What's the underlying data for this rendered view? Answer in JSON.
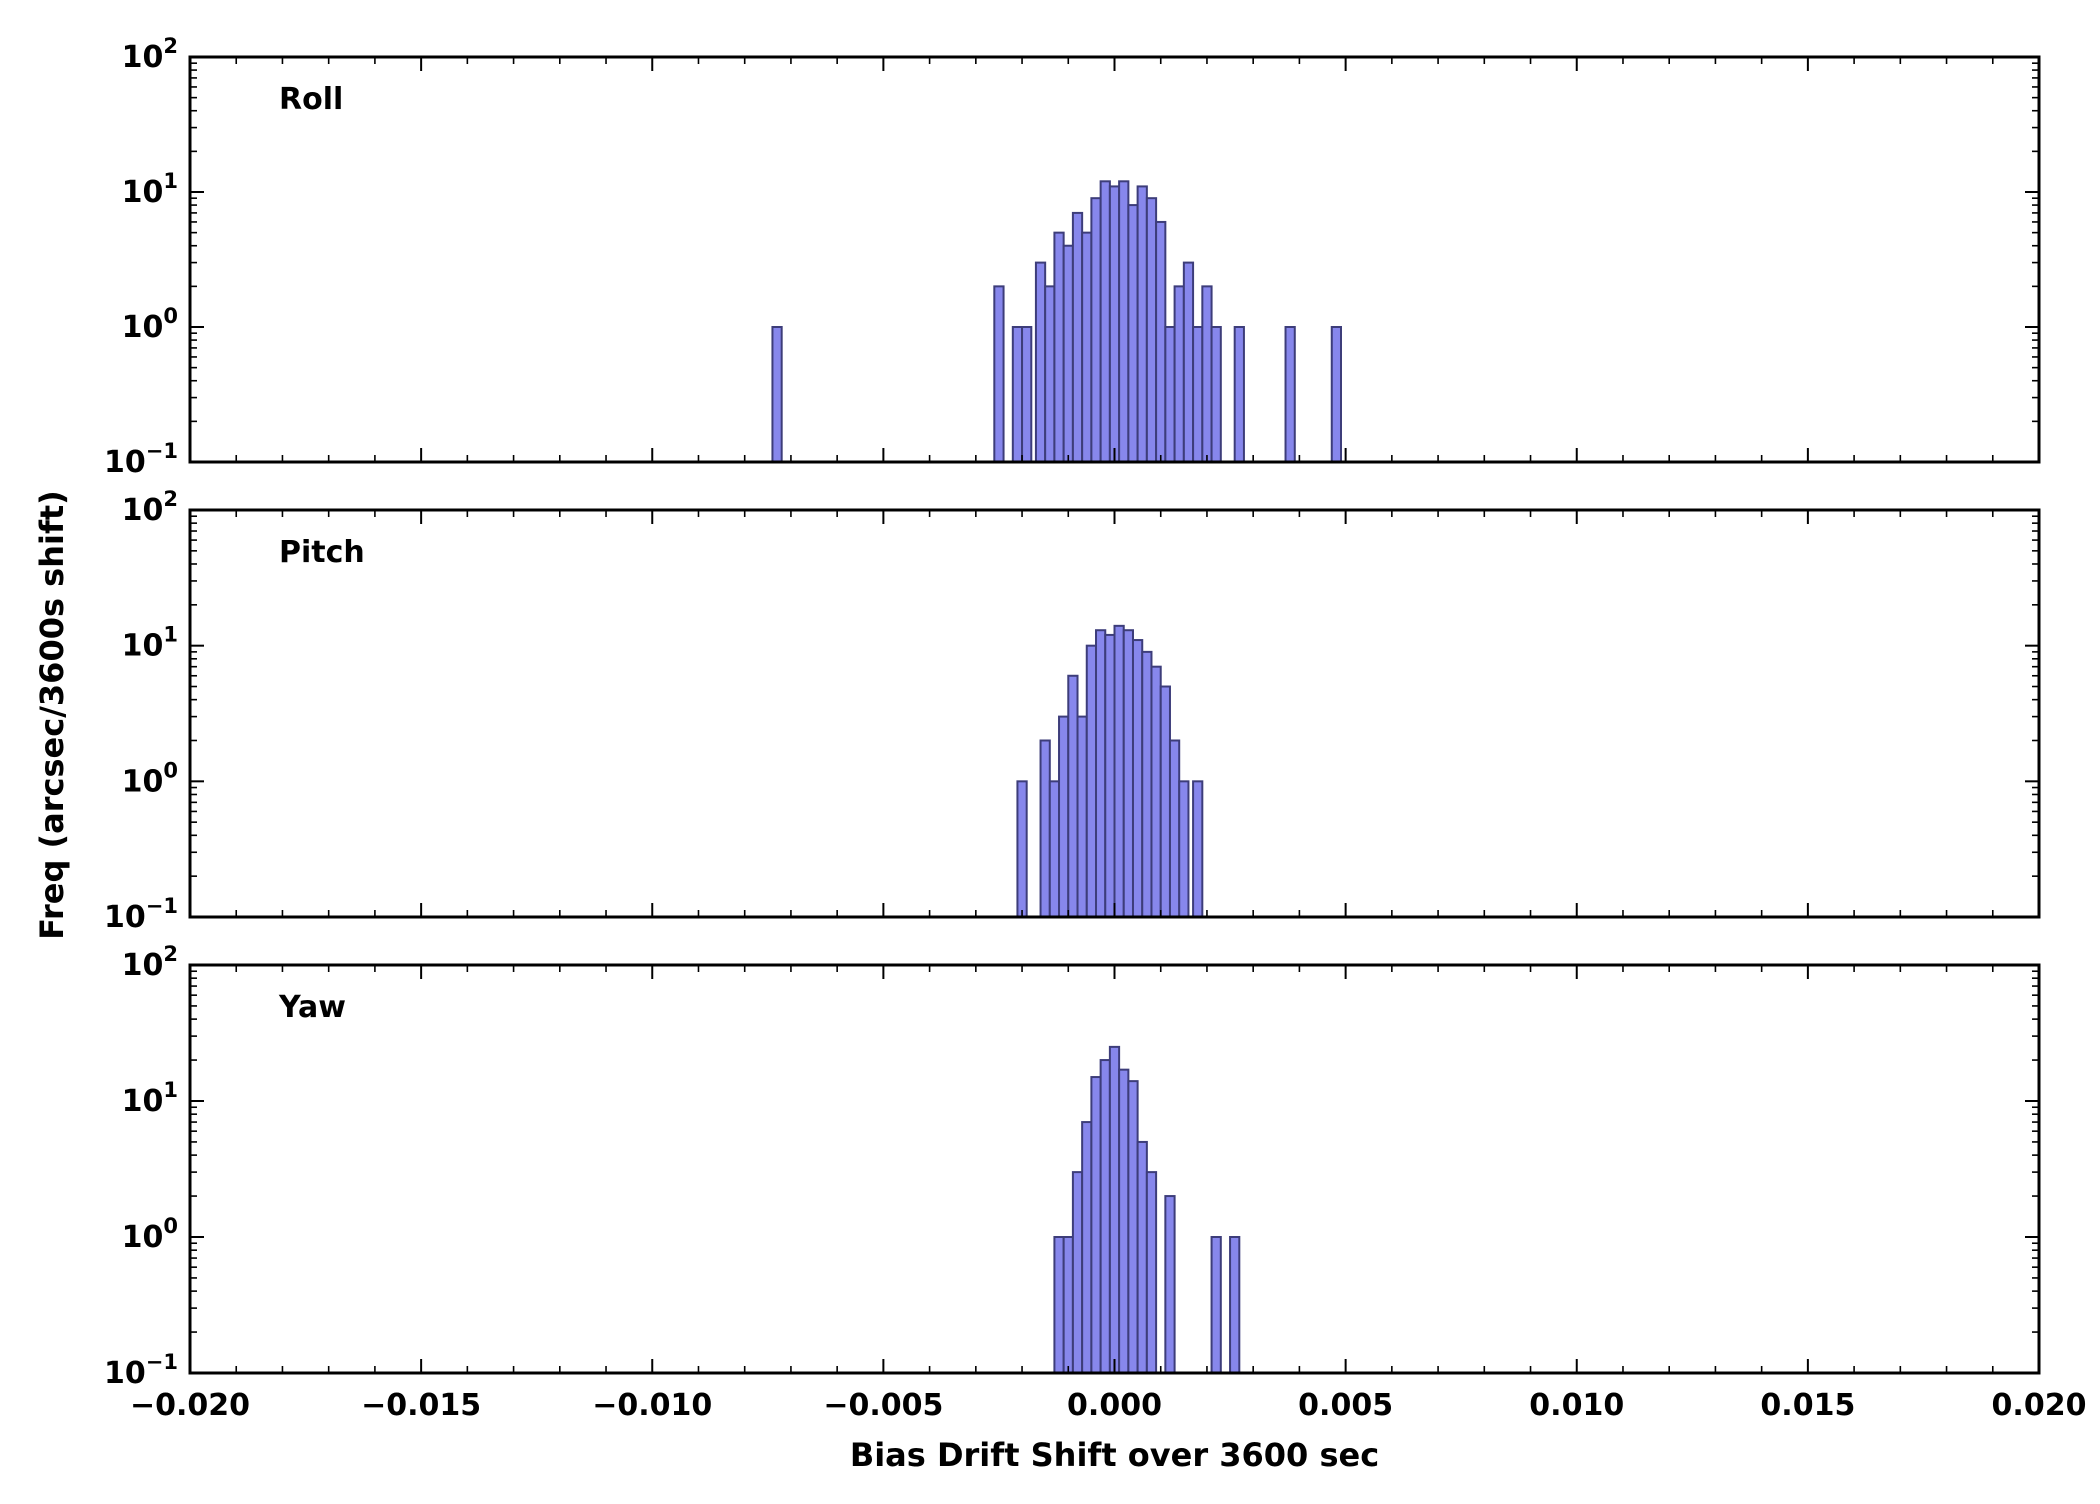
{
  "figure": {
    "xlabel": "Bias Drift Shift over 3600 sec",
    "ylabel": "Freq (arcsec/3600s shift)"
  },
  "chart_data": {
    "type": "bar",
    "subtype": "histogram-stacked-panels",
    "title": "",
    "xlabel": "Bias Drift Shift over 3600 sec",
    "ylabel": "Freq (arcsec/3600s shift)",
    "xlim": [
      -0.02,
      0.02
    ],
    "x_major_ticks": [
      -0.02,
      -0.015,
      -0.01,
      -0.005,
      0.0,
      0.005,
      0.01,
      0.015,
      0.02
    ],
    "x_tick_labels": [
      "−0.020",
      "−0.015",
      "−0.010",
      "−0.005",
      "0.000",
      "0.005",
      "0.010",
      "0.015",
      "0.020"
    ],
    "x_minor_step": 0.001,
    "yscale": "log",
    "ylim": [
      0.1,
      100
    ],
    "y_major_ticks": [
      {
        "value": 100,
        "mantissa": "10",
        "exponent": "2"
      },
      {
        "value": 10,
        "mantissa": "10",
        "exponent": "1"
      },
      {
        "value": 1,
        "mantissa": "10",
        "exponent": "0"
      },
      {
        "value": 0.1,
        "mantissa": "10",
        "exponent": "−1"
      }
    ],
    "grid": false,
    "legend": "none",
    "bin_width": 0.0002,
    "colors": {
      "bar_fill": "#8787ec",
      "bar_edge": "#3d3d7a",
      "axis": "#000000",
      "text": "#000000",
      "background": "#ffffff"
    },
    "panels": [
      {
        "label": "Roll",
        "bars": [
          [
            -0.0074,
            1
          ],
          [
            -0.0026,
            2
          ],
          [
            -0.0022,
            1
          ],
          [
            -0.002,
            1
          ],
          [
            -0.0017,
            3
          ],
          [
            -0.0015,
            2
          ],
          [
            -0.0013,
            5
          ],
          [
            -0.0011,
            4
          ],
          [
            -0.0009,
            7
          ],
          [
            -0.0007,
            5
          ],
          [
            -0.0005,
            9
          ],
          [
            -0.0003,
            12
          ],
          [
            -0.0001,
            11
          ],
          [
            0.0001,
            12
          ],
          [
            0.0003,
            8
          ],
          [
            0.0005,
            11
          ],
          [
            0.0007,
            9
          ],
          [
            0.0009,
            6
          ],
          [
            0.0011,
            1
          ],
          [
            0.0013,
            2
          ],
          [
            0.0015,
            3
          ],
          [
            0.0017,
            1
          ],
          [
            0.0019,
            2
          ],
          [
            0.0021,
            1
          ],
          [
            0.0026,
            1
          ],
          [
            0.0037,
            1
          ],
          [
            0.0047,
            1
          ]
        ]
      },
      {
        "label": "Pitch",
        "bars": [
          [
            -0.0021,
            1
          ],
          [
            -0.0016,
            2
          ],
          [
            -0.0014,
            1
          ],
          [
            -0.0012,
            3
          ],
          [
            -0.001,
            6
          ],
          [
            -0.0008,
            3
          ],
          [
            -0.0006,
            10
          ],
          [
            -0.0004,
            13
          ],
          [
            -0.0002,
            12
          ],
          [
            0.0,
            14
          ],
          [
            0.0002,
            13
          ],
          [
            0.0004,
            11
          ],
          [
            0.0006,
            9
          ],
          [
            0.0008,
            7
          ],
          [
            0.001,
            5
          ],
          [
            0.0012,
            2
          ],
          [
            0.0014,
            1
          ],
          [
            0.0017,
            1
          ]
        ]
      },
      {
        "label": "Yaw",
        "bars": [
          [
            -0.0013,
            1
          ],
          [
            -0.0011,
            1
          ],
          [
            -0.0009,
            3
          ],
          [
            -0.0007,
            7
          ],
          [
            -0.0005,
            15
          ],
          [
            -0.0003,
            20
          ],
          [
            -0.0001,
            25
          ],
          [
            0.0001,
            17
          ],
          [
            0.0003,
            14
          ],
          [
            0.0005,
            5
          ],
          [
            0.0007,
            3
          ],
          [
            0.0011,
            2
          ],
          [
            0.0021,
            1
          ],
          [
            0.0025,
            1
          ]
        ]
      }
    ]
  }
}
